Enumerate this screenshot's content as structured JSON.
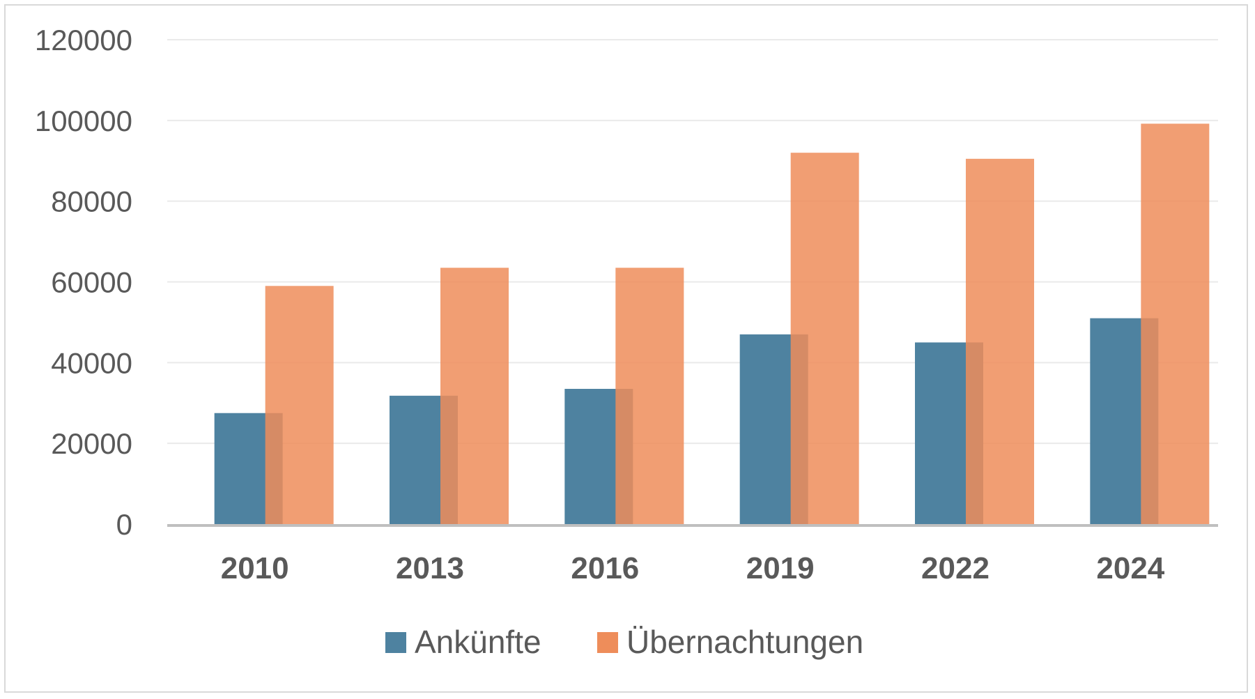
{
  "chart_data": {
    "type": "bar",
    "categories": [
      "2010",
      "2013",
      "2016",
      "2019",
      "2022",
      "2024"
    ],
    "series": [
      {
        "name": "Ankünfte",
        "values": [
          27500,
          31800,
          33500,
          47000,
          45000,
          51000
        ],
        "color": "#4e82a0"
      },
      {
        "name": "Übernachtungen",
        "values": [
          59000,
          63500,
          63500,
          92000,
          90500,
          99200
        ],
        "color": "#ee8d5a"
      }
    ],
    "ylim": [
      0,
      120000
    ],
    "yticks": [
      "0",
      "20000",
      "40000",
      "60000",
      "80000",
      "100000",
      "120000"
    ],
    "grid": true,
    "legend_position": "bottom",
    "bars_overlap": true
  }
}
